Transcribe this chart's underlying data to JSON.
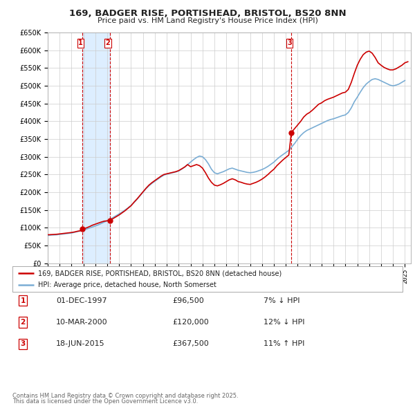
{
  "title": "169, BADGER RISE, PORTISHEAD, BRISTOL, BS20 8NN",
  "subtitle": "Price paid vs. HM Land Registry's House Price Index (HPI)",
  "legend_line1": "169, BADGER RISE, PORTISHEAD, BRISTOL, BS20 8NN (detached house)",
  "legend_line2": "HPI: Average price, detached house, North Somerset",
  "footer1": "Contains HM Land Registry data © Crown copyright and database right 2025.",
  "footer2": "This data is licensed under the Open Government Licence v3.0.",
  "transactions": [
    {
      "num": 1,
      "date": 1997.917,
      "price": 96500,
      "label": "01-DEC-1997",
      "pct": "7%",
      "dir": "↓"
    },
    {
      "num": 2,
      "date": 2000.208,
      "price": 120000,
      "label": "10-MAR-2000",
      "pct": "12%",
      "dir": "↓"
    },
    {
      "num": 3,
      "date": 2015.458,
      "price": 367500,
      "label": "18-JUN-2015",
      "pct": "11%",
      "dir": "↑"
    }
  ],
  "price_color": "#cc0000",
  "hpi_color": "#7aadd4",
  "vline_color": "#cc0000",
  "shade_color": "#ddeeff",
  "ylim": [
    0,
    650000
  ],
  "ytick_step": 50000,
  "xmin": 1995.0,
  "xmax": 2025.5,
  "background_color": "#ffffff",
  "grid_color": "#cccccc",
  "hpi_data": [
    [
      1995.0,
      78000
    ],
    [
      1995.25,
      79000
    ],
    [
      1995.5,
      79500
    ],
    [
      1995.75,
      80000
    ],
    [
      1996.0,
      81000
    ],
    [
      1996.25,
      82000
    ],
    [
      1996.5,
      83000
    ],
    [
      1996.75,
      84000
    ],
    [
      1997.0,
      85000
    ],
    [
      1997.25,
      87000
    ],
    [
      1997.5,
      89000
    ],
    [
      1997.75,
      91000
    ],
    [
      1998.0,
      93000
    ],
    [
      1998.25,
      96000
    ],
    [
      1998.5,
      99000
    ],
    [
      1998.75,
      102000
    ],
    [
      1999.0,
      105000
    ],
    [
      1999.25,
      108000
    ],
    [
      1999.5,
      112000
    ],
    [
      1999.75,
      116000
    ],
    [
      2000.0,
      120000
    ],
    [
      2000.25,
      124000
    ],
    [
      2000.5,
      129000
    ],
    [
      2000.75,
      134000
    ],
    [
      2001.0,
      139000
    ],
    [
      2001.25,
      144000
    ],
    [
      2001.5,
      150000
    ],
    [
      2001.75,
      156000
    ],
    [
      2002.0,
      163000
    ],
    [
      2002.25,
      171000
    ],
    [
      2002.5,
      180000
    ],
    [
      2002.75,
      190000
    ],
    [
      2003.0,
      200000
    ],
    [
      2003.25,
      210000
    ],
    [
      2003.5,
      218000
    ],
    [
      2003.75,
      225000
    ],
    [
      2004.0,
      231000
    ],
    [
      2004.25,
      237000
    ],
    [
      2004.5,
      243000
    ],
    [
      2004.75,
      248000
    ],
    [
      2005.0,
      251000
    ],
    [
      2005.25,
      253000
    ],
    [
      2005.5,
      255000
    ],
    [
      2005.75,
      257000
    ],
    [
      2006.0,
      260000
    ],
    [
      2006.25,
      265000
    ],
    [
      2006.5,
      271000
    ],
    [
      2006.75,
      278000
    ],
    [
      2007.0,
      285000
    ],
    [
      2007.25,
      292000
    ],
    [
      2007.5,
      298000
    ],
    [
      2007.75,
      302000
    ],
    [
      2008.0,
      300000
    ],
    [
      2008.25,
      292000
    ],
    [
      2008.5,
      280000
    ],
    [
      2008.75,
      265000
    ],
    [
      2009.0,
      255000
    ],
    [
      2009.25,
      252000
    ],
    [
      2009.5,
      255000
    ],
    [
      2009.75,
      258000
    ],
    [
      2010.0,
      262000
    ],
    [
      2010.25,
      266000
    ],
    [
      2010.5,
      268000
    ],
    [
      2010.75,
      265000
    ],
    [
      2011.0,
      262000
    ],
    [
      2011.25,
      260000
    ],
    [
      2011.5,
      258000
    ],
    [
      2011.75,
      256000
    ],
    [
      2012.0,
      255000
    ],
    [
      2012.25,
      256000
    ],
    [
      2012.5,
      258000
    ],
    [
      2012.75,
      261000
    ],
    [
      2013.0,
      264000
    ],
    [
      2013.25,
      268000
    ],
    [
      2013.5,
      273000
    ],
    [
      2013.75,
      279000
    ],
    [
      2014.0,
      285000
    ],
    [
      2014.25,
      293000
    ],
    [
      2014.5,
      300000
    ],
    [
      2014.75,
      306000
    ],
    [
      2015.0,
      312000
    ],
    [
      2015.25,
      318000
    ],
    [
      2015.5,
      328000
    ],
    [
      2015.75,
      338000
    ],
    [
      2016.0,
      350000
    ],
    [
      2016.25,
      360000
    ],
    [
      2016.5,
      368000
    ],
    [
      2016.75,
      374000
    ],
    [
      2017.0,
      378000
    ],
    [
      2017.25,
      382000
    ],
    [
      2017.5,
      386000
    ],
    [
      2017.75,
      390000
    ],
    [
      2018.0,
      394000
    ],
    [
      2018.25,
      398000
    ],
    [
      2018.5,
      402000
    ],
    [
      2018.75,
      405000
    ],
    [
      2019.0,
      407000
    ],
    [
      2019.25,
      410000
    ],
    [
      2019.5,
      413000
    ],
    [
      2019.75,
      416000
    ],
    [
      2020.0,
      418000
    ],
    [
      2020.25,
      425000
    ],
    [
      2020.5,
      438000
    ],
    [
      2020.75,
      455000
    ],
    [
      2021.0,
      468000
    ],
    [
      2021.25,
      482000
    ],
    [
      2021.5,
      495000
    ],
    [
      2021.75,
      505000
    ],
    [
      2022.0,
      512000
    ],
    [
      2022.25,
      518000
    ],
    [
      2022.5,
      520000
    ],
    [
      2022.75,
      518000
    ],
    [
      2023.0,
      514000
    ],
    [
      2023.25,
      510000
    ],
    [
      2023.5,
      506000
    ],
    [
      2023.75,
      502000
    ],
    [
      2024.0,
      500000
    ],
    [
      2024.25,
      502000
    ],
    [
      2024.5,
      505000
    ],
    [
      2024.75,
      510000
    ],
    [
      2025.0,
      515000
    ]
  ],
  "price_data": [
    [
      1995.0,
      80000
    ],
    [
      1995.25,
      80500
    ],
    [
      1995.5,
      81000
    ],
    [
      1995.75,
      81500
    ],
    [
      1996.0,
      82500
    ],
    [
      1996.25,
      83500
    ],
    [
      1996.5,
      84500
    ],
    [
      1996.75,
      85500
    ],
    [
      1997.0,
      86500
    ],
    [
      1997.25,
      88000
    ],
    [
      1997.5,
      90000
    ],
    [
      1997.75,
      91500
    ],
    [
      1997.917,
      96500
    ],
    [
      1998.0,
      97000
    ],
    [
      1998.25,
      99500
    ],
    [
      1998.5,
      103000
    ],
    [
      1998.75,
      107000
    ],
    [
      1999.0,
      110000
    ],
    [
      1999.25,
      113000
    ],
    [
      1999.5,
      116000
    ],
    [
      1999.75,
      118500
    ],
    [
      2000.208,
      120000
    ],
    [
      2000.25,
      121000
    ],
    [
      2000.5,
      126000
    ],
    [
      2000.75,
      131000
    ],
    [
      2001.0,
      136000
    ],
    [
      2001.25,
      142000
    ],
    [
      2001.5,
      148000
    ],
    [
      2001.75,
      155000
    ],
    [
      2002.0,
      162000
    ],
    [
      2002.25,
      172000
    ],
    [
      2002.5,
      181000
    ],
    [
      2002.75,
      191000
    ],
    [
      2003.0,
      201000
    ],
    [
      2003.25,
      211000
    ],
    [
      2003.5,
      220000
    ],
    [
      2003.75,
      227000
    ],
    [
      2004.0,
      233000
    ],
    [
      2004.25,
      239000
    ],
    [
      2004.5,
      245000
    ],
    [
      2004.75,
      250000
    ],
    [
      2005.0,
      252000
    ],
    [
      2005.25,
      254000
    ],
    [
      2005.5,
      256000
    ],
    [
      2005.75,
      258000
    ],
    [
      2006.0,
      261000
    ],
    [
      2006.25,
      266000
    ],
    [
      2006.5,
      271000
    ],
    [
      2006.75,
      278000
    ],
    [
      2007.0,
      272000
    ],
    [
      2007.25,
      275000
    ],
    [
      2007.5,
      278000
    ],
    [
      2007.75,
      275000
    ],
    [
      2008.0,
      268000
    ],
    [
      2008.25,
      255000
    ],
    [
      2008.5,
      240000
    ],
    [
      2008.75,
      228000
    ],
    [
      2009.0,
      220000
    ],
    [
      2009.25,
      218000
    ],
    [
      2009.5,
      221000
    ],
    [
      2009.75,
      225000
    ],
    [
      2010.0,
      230000
    ],
    [
      2010.25,
      235000
    ],
    [
      2010.5,
      238000
    ],
    [
      2010.75,
      235000
    ],
    [
      2011.0,
      230000
    ],
    [
      2011.25,
      228000
    ],
    [
      2011.5,
      225000
    ],
    [
      2011.75,
      223000
    ],
    [
      2012.0,
      222000
    ],
    [
      2012.25,
      225000
    ],
    [
      2012.5,
      228000
    ],
    [
      2012.75,
      232000
    ],
    [
      2013.0,
      237000
    ],
    [
      2013.25,
      243000
    ],
    [
      2013.5,
      250000
    ],
    [
      2013.75,
      258000
    ],
    [
      2014.0,
      265000
    ],
    [
      2014.25,
      275000
    ],
    [
      2014.5,
      283000
    ],
    [
      2014.75,
      291000
    ],
    [
      2015.0,
      298000
    ],
    [
      2015.25,
      305000
    ],
    [
      2015.458,
      367500
    ],
    [
      2015.5,
      370000
    ],
    [
      2015.75,
      380000
    ],
    [
      2016.0,
      390000
    ],
    [
      2016.25,
      400000
    ],
    [
      2016.5,
      412000
    ],
    [
      2016.75,
      420000
    ],
    [
      2017.0,
      425000
    ],
    [
      2017.25,
      432000
    ],
    [
      2017.5,
      440000
    ],
    [
      2017.75,
      448000
    ],
    [
      2018.0,
      452000
    ],
    [
      2018.25,
      458000
    ],
    [
      2018.5,
      462000
    ],
    [
      2018.75,
      465000
    ],
    [
      2019.0,
      468000
    ],
    [
      2019.25,
      472000
    ],
    [
      2019.5,
      476000
    ],
    [
      2019.75,
      480000
    ],
    [
      2020.0,
      482000
    ],
    [
      2020.25,
      490000
    ],
    [
      2020.5,
      510000
    ],
    [
      2020.75,
      535000
    ],
    [
      2021.0,
      558000
    ],
    [
      2021.25,
      575000
    ],
    [
      2021.5,
      588000
    ],
    [
      2021.75,
      595000
    ],
    [
      2022.0,
      598000
    ],
    [
      2022.25,
      592000
    ],
    [
      2022.5,
      580000
    ],
    [
      2022.75,
      565000
    ],
    [
      2023.0,
      558000
    ],
    [
      2023.25,
      552000
    ],
    [
      2023.5,
      548000
    ],
    [
      2023.75,
      545000
    ],
    [
      2024.0,
      545000
    ],
    [
      2024.25,
      548000
    ],
    [
      2024.5,
      553000
    ],
    [
      2024.75,
      558000
    ],
    [
      2025.0,
      565000
    ],
    [
      2025.25,
      568000
    ]
  ]
}
